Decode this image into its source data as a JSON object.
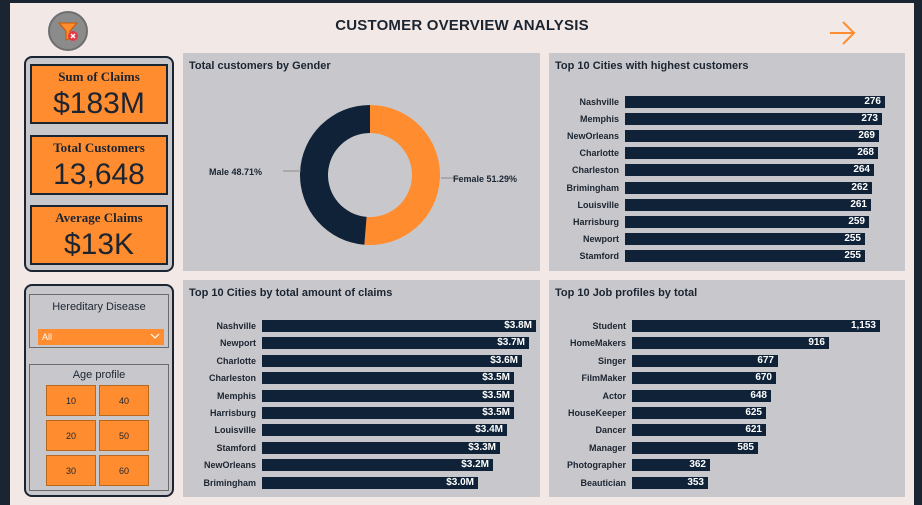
{
  "header": {
    "title": "CUSTOMER OVERVIEW ANALYSIS",
    "filter_icon": "filter-clear-icon",
    "next_icon": "arrow-right-icon"
  },
  "colors": {
    "accent": "#ff8c2e",
    "navy": "#0f2238",
    "panel": "#c8c8cc",
    "page": "#f2e9e7"
  },
  "kpis": [
    {
      "label": "Sum of Claims",
      "value": "$183M"
    },
    {
      "label": "Total Customers",
      "value": "13,648"
    },
    {
      "label": "Average Claims",
      "value": "$13K"
    }
  ],
  "slicers": {
    "hereditary": {
      "title": "Hereditary Disease",
      "selected": "All"
    },
    "age": {
      "title": "Age profile",
      "options": [
        "10",
        "40",
        "20",
        "50",
        "30",
        "60"
      ]
    }
  },
  "gender_chart": {
    "title": "Total customers by Gender",
    "segments": [
      {
        "label": "Male 48.71%",
        "value": 48.71,
        "color": "#0f2238"
      },
      {
        "label": "Female 51.29%",
        "value": 51.29,
        "color": "#ff8c2e"
      }
    ]
  },
  "chart_data": [
    {
      "type": "bar",
      "title": "Top 10 Cities with highest customers",
      "categories": [
        "Nashville",
        "Memphis",
        "NewOrleans",
        "Charlotte",
        "Charleston",
        "Brimingham",
        "Louisville",
        "Harrisburg",
        "Newport",
        "Stamford"
      ],
      "values": [
        276,
        273,
        269,
        268,
        264,
        262,
        261,
        259,
        255,
        255
      ],
      "labels": [
        "276",
        "273",
        "269",
        "268",
        "264",
        "262",
        "261",
        "259",
        "255",
        "255"
      ]
    },
    {
      "type": "bar",
      "title": "Top 10 Cities by total amount of claims",
      "categories": [
        "Nashville",
        "Newport",
        "Charlotte",
        "Charleston",
        "Memphis",
        "Harrisburg",
        "Louisville",
        "Stamford",
        "NewOrleans",
        "Brimingham"
      ],
      "values": [
        3.8,
        3.7,
        3.6,
        3.5,
        3.5,
        3.5,
        3.4,
        3.3,
        3.2,
        3.0
      ],
      "labels": [
        "$3.8M",
        "$3.7M",
        "$3.6M",
        "$3.5M",
        "$3.5M",
        "$3.5M",
        "$3.4M",
        "$3.3M",
        "$3.2M",
        "$3.0M"
      ]
    },
    {
      "type": "bar",
      "title": "Top 10 Job profiles by total",
      "categories": [
        "Student",
        "HomeMakers",
        "Singer",
        "FilmMaker",
        "Actor",
        "HouseKeeper",
        "Dancer",
        "Manager",
        "Photographer",
        "Beautician"
      ],
      "values": [
        1153,
        916,
        677,
        670,
        648,
        625,
        621,
        585,
        362,
        353
      ],
      "labels": [
        "1,153",
        "916",
        "677",
        "670",
        "648",
        "625",
        "621",
        "585",
        "362",
        "353"
      ]
    }
  ]
}
